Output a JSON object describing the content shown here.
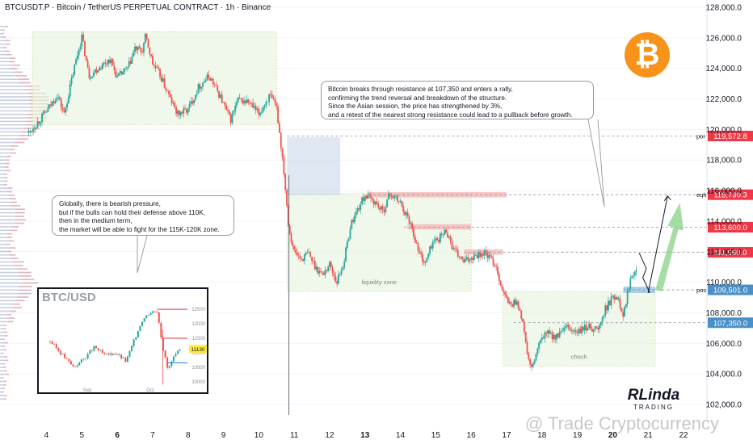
{
  "header": {
    "title": "BTCUSDT.P · Bitcoin / TetherUS PERPETUAL CONTRACT · 1h · Binance"
  },
  "notes": {
    "top": [
      "Bitcoin breaks through resistance at 107,350 and enters a rally,",
      "confirming the trend reversal and breakdown of the structure.",
      "Since the Asian session, the price has strengthened by 3%,",
      "and a retest of the nearest strong resistance could lead to a pullback before growth."
    ],
    "left": [
      "Globally, there is bearish pressure,",
      "but if the bulls can hold their defense above 110K,",
      "then in the medium term,",
      "the market will be able to fight for the 115K-120K zone."
    ]
  },
  "inset": {
    "title": "BTC/USD"
  },
  "brand": {
    "line1": "RLinda",
    "line2": "TRADING"
  },
  "watermark": "@ Trade Cryptocurrency",
  "logo_symbol": "₿",
  "colors": {
    "up": "#26a69a",
    "down": "#ef5350",
    "zone": "#e8f5e0",
    "zone_border": "#d4c24a",
    "red_label": "#f23645",
    "blue_label": "#4a90c8"
  },
  "chart_data": {
    "type": "candlestick",
    "title": "BTCUSDT.P · Bitcoin / TetherUS PERPETUAL CONTRACT · 1h · Binance",
    "ylim": [
      101200,
      128600
    ],
    "y_ticks": [
      102000,
      104000,
      106000,
      108000,
      110000,
      112000,
      114000,
      116000,
      118000,
      120000,
      122000,
      124000,
      126000,
      128000
    ],
    "x_tick_labels": [
      "4",
      "5",
      "6",
      "7",
      "8",
      "9",
      "10",
      "11",
      "12",
      "13",
      "14",
      "15",
      "16",
      "17",
      "18",
      "19",
      "20",
      "21",
      "22"
    ],
    "x_ticks_bold": [
      "6",
      "13",
      "20"
    ],
    "price_path": [
      [
        3.5,
        119800
      ],
      [
        3.8,
        120600
      ],
      [
        4.1,
        121500
      ],
      [
        4.3,
        122300
      ],
      [
        4.5,
        121000
      ],
      [
        4.8,
        124200
      ],
      [
        5.0,
        126100
      ],
      [
        5.2,
        123500
      ],
      [
        5.5,
        124100
      ],
      [
        5.8,
        124600
      ],
      [
        6.0,
        123400
      ],
      [
        6.3,
        124000
      ],
      [
        6.5,
        125300
      ],
      [
        6.7,
        125100
      ],
      [
        6.8,
        126100
      ],
      [
        7.0,
        124300
      ],
      [
        7.2,
        123600
      ],
      [
        7.5,
        122000
      ],
      [
        7.7,
        121000
      ],
      [
        8.0,
        121300
      ],
      [
        8.3,
        122800
      ],
      [
        8.6,
        123500
      ],
      [
        8.9,
        122200
      ],
      [
        9.2,
        120600
      ],
      [
        9.4,
        121900
      ],
      [
        9.7,
        121800
      ],
      [
        10.0,
        121000
      ],
      [
        10.3,
        122200
      ],
      [
        10.5,
        121400
      ],
      [
        10.7,
        117500
      ],
      [
        10.85,
        113500
      ],
      [
        11.0,
        112000
      ],
      [
        11.2,
        111500
      ],
      [
        11.4,
        111900
      ],
      [
        11.6,
        111000
      ],
      [
        11.8,
        110500
      ],
      [
        12.0,
        111200
      ],
      [
        12.2,
        110000
      ],
      [
        12.4,
        111300
      ],
      [
        12.6,
        113800
      ],
      [
        12.8,
        114800
      ],
      [
        13.0,
        115700
      ],
      [
        13.3,
        115200
      ],
      [
        13.5,
        114600
      ],
      [
        13.7,
        115800
      ],
      [
        14.0,
        115200
      ],
      [
        14.3,
        113800
      ],
      [
        14.5,
        112100
      ],
      [
        14.7,
        111200
      ],
      [
        14.9,
        112600
      ],
      [
        15.1,
        112900
      ],
      [
        15.3,
        113400
      ],
      [
        15.5,
        112100
      ],
      [
        15.8,
        111300
      ],
      [
        16.1,
        111800
      ],
      [
        16.4,
        111900
      ],
      [
        16.7,
        111100
      ],
      [
        16.9,
        109300
      ],
      [
        17.1,
        108500
      ],
      [
        17.3,
        108800
      ],
      [
        17.5,
        106800
      ],
      [
        17.6,
        105100
      ],
      [
        17.7,
        104200
      ],
      [
        17.9,
        105800
      ],
      [
        18.1,
        106700
      ],
      [
        18.4,
        106400
      ],
      [
        18.7,
        107000
      ],
      [
        19.0,
        106700
      ],
      [
        19.3,
        107100
      ],
      [
        19.6,
        106900
      ],
      [
        19.8,
        108300
      ],
      [
        20.0,
        109000
      ],
      [
        20.15,
        109100
      ],
      [
        20.3,
        107800
      ],
      [
        20.5,
        110300
      ],
      [
        20.7,
        111200
      ]
    ],
    "zones": [
      {
        "x": [
          3.6,
          10.5
        ],
        "y": [
          120300,
          126400
        ]
      },
      {
        "x": [
          10.8,
          16.0
        ],
        "y": [
          109400,
          115800
        ],
        "label": "liquidity zone"
      },
      {
        "x": [
          16.9,
          21.2
        ],
        "y": [
          104500,
          109400
        ],
        "label": "choch"
      }
    ],
    "levels": [
      {
        "value": 119572.8,
        "label": "poi",
        "price_label": "119,572.8",
        "style": "red",
        "x_from": 10.8
      },
      {
        "value": 115730.3,
        "label": "eqh",
        "price_label": "115,730.3",
        "style": "red",
        "x_from": 13.1
      },
      {
        "value": 113600.0,
        "price_label": "113,600.0",
        "style": "red",
        "x_from": 14.1
      },
      {
        "value": 111960.0,
        "price_label": "111,960.0",
        "style": "red",
        "x_from": 15.8
      },
      {
        "value": 109501.0,
        "label": "pos",
        "price_label": "109,501.0",
        "style": "blue",
        "x_from": 20.3
      },
      {
        "value": 107350.0,
        "price_label": "107,350.0",
        "style": "blue",
        "x_from": 17.2
      }
    ],
    "inset_chart": {
      "type": "candlestick",
      "title": "BTC/USD",
      "ylim": [
        9800,
        12700
      ],
      "y_ticks": [
        10000,
        10500,
        11000,
        11500,
        12000,
        12500
      ],
      "x_tick_labels": [
        "Sep",
        "Oct"
      ],
      "price_label": "11130",
      "price_path": [
        [
          0,
          11400
        ],
        [
          5,
          10900
        ],
        [
          9,
          10500
        ],
        [
          13,
          10800
        ],
        [
          17,
          11200
        ],
        [
          21,
          10900
        ],
        [
          25,
          11000
        ],
        [
          29,
          10700
        ],
        [
          32,
          11400
        ],
        [
          35,
          12100
        ],
        [
          38,
          12400
        ],
        [
          41,
          12450
        ],
        [
          43,
          11200
        ],
        [
          45,
          10400
        ],
        [
          47,
          10800
        ],
        [
          50,
          11130
        ]
      ]
    }
  }
}
